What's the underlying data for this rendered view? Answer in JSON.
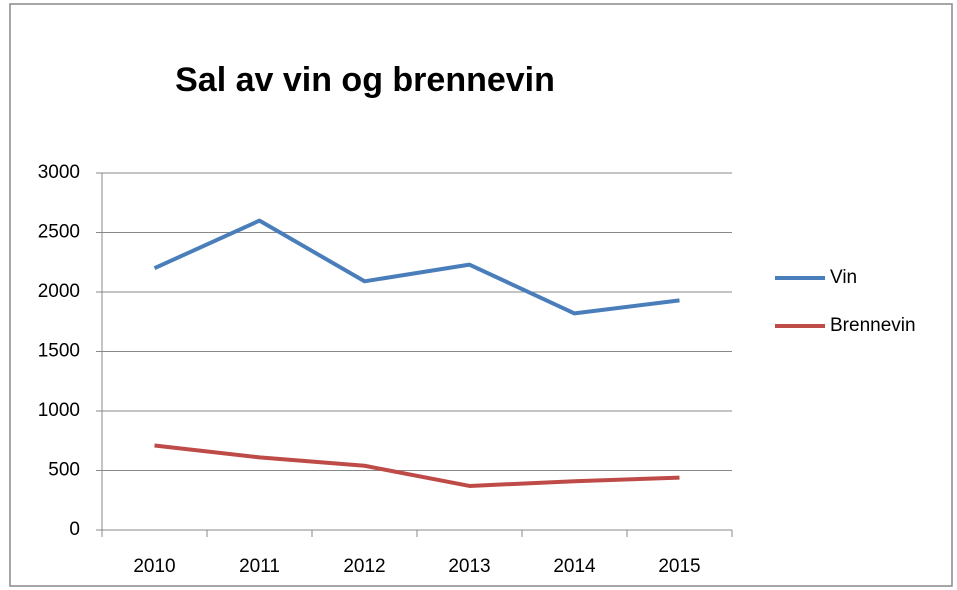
{
  "chart_data": {
    "type": "line",
    "title": "Sal av vin og brennevin",
    "categories": [
      "2010",
      "2011",
      "2012",
      "2013",
      "2014",
      "2015"
    ],
    "series": [
      {
        "name": "Vin",
        "color": "#4a7ebb",
        "values": [
          2200,
          2600,
          2090,
          2230,
          1820,
          1930
        ]
      },
      {
        "name": "Brennevin",
        "color": "#be4b48",
        "values": [
          710,
          610,
          540,
          370,
          410,
          440
        ]
      }
    ],
    "ylim": [
      0,
      3000
    ],
    "yticks": [
      0,
      500,
      1000,
      1500,
      2000,
      2500,
      3000
    ],
    "grid": true,
    "legend": "right"
  }
}
